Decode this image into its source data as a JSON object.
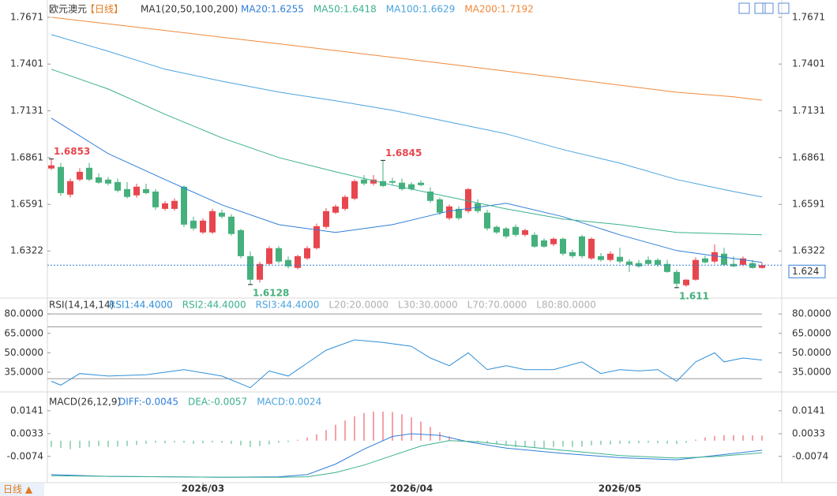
{
  "chart_data": [
    {
      "type": "candlestick",
      "title": "欧元澳元",
      "period": "【日线】",
      "indicator": "MA1(20,50,100,200)",
      "up_color": "#e8464e",
      "down_color": "#45b07c",
      "candles": {
        "open": [
          1.6798,
          1.6807,
          1.6647,
          1.6734,
          1.6802,
          1.6747,
          1.6734,
          1.672,
          1.6679,
          1.6643,
          1.6679,
          1.6665,
          1.6565,
          1.6565,
          1.6693,
          1.6497,
          1.6429,
          1.6429,
          1.6543,
          1.652,
          1.6442,
          1.6292,
          1.6156,
          1.6247,
          1.6338,
          1.627,
          1.6224,
          1.6279,
          1.6338,
          1.6461,
          1.6543,
          1.6565,
          1.6624,
          1.6734,
          1.6711,
          1.6725,
          1.6725,
          1.6716,
          1.6707,
          1.6716,
          1.6665,
          1.662,
          1.6511,
          1.6565,
          1.6552,
          1.6597,
          1.6543,
          1.6461,
          1.6452,
          1.6461,
          1.6415,
          1.6415,
          1.6383,
          1.6361,
          1.6392,
          1.6315,
          1.6406,
          1.6279,
          1.6292,
          1.627,
          1.6288,
          1.6261,
          1.6252,
          1.627,
          1.627,
          1.6247,
          1.6201,
          1.6124,
          1.6156,
          1.6279,
          1.6261,
          1.6306,
          1.6247,
          1.6242,
          1.6252,
          1.6224
        ],
        "high": [
          1.6853,
          1.683,
          1.674,
          1.68,
          1.683,
          1.677,
          1.675,
          1.674,
          1.672,
          1.671,
          1.671,
          1.668,
          1.661,
          1.6625,
          1.67,
          1.652,
          1.651,
          1.6565,
          1.656,
          1.6535,
          1.645,
          1.632,
          1.626,
          1.635,
          1.635,
          1.629,
          1.63,
          1.635,
          1.648,
          1.657,
          1.659,
          1.6645,
          1.6735,
          1.676,
          1.676,
          1.6845,
          1.6745,
          1.674,
          1.672,
          1.673,
          1.669,
          1.663,
          1.659,
          1.658,
          1.6685,
          1.662,
          1.656,
          1.647,
          1.646,
          1.6475,
          1.645,
          1.643,
          1.6395,
          1.64,
          1.64,
          1.633,
          1.6415,
          1.64,
          1.631,
          1.632,
          1.634,
          1.6275,
          1.627,
          1.629,
          1.628,
          1.627,
          1.6215,
          1.616,
          1.6285,
          1.6295,
          1.636,
          1.634,
          1.629,
          1.629,
          1.627,
          1.6255
        ],
        "low": [
          1.679,
          1.664,
          1.663,
          1.6725,
          1.6725,
          1.671,
          1.67,
          1.666,
          1.6625,
          1.663,
          1.665,
          1.656,
          1.6555,
          1.6555,
          1.646,
          1.644,
          1.642,
          1.642,
          1.651,
          1.641,
          1.628,
          1.6128,
          1.614,
          1.624,
          1.625,
          1.622,
          1.6215,
          1.627,
          1.633,
          1.645,
          1.6535,
          1.6555,
          1.6615,
          1.67,
          1.67,
          1.669,
          1.6705,
          1.667,
          1.667,
          1.6695,
          1.66,
          1.653,
          1.65,
          1.65,
          1.654,
          1.654,
          1.644,
          1.642,
          1.6395,
          1.6405,
          1.6405,
          1.634,
          1.634,
          1.635,
          1.6295,
          1.628,
          1.628,
          1.627,
          1.626,
          1.626,
          1.625,
          1.62,
          1.6225,
          1.624,
          1.623,
          1.6195,
          1.611,
          1.6115,
          1.615,
          1.625,
          1.625,
          1.6235,
          1.623,
          1.6235,
          1.622,
          1.622
        ],
        "close": [
          1.6816,
          1.6656,
          1.6725,
          1.6779,
          1.6734,
          1.6716,
          1.6711,
          1.667,
          1.6634,
          1.6693,
          1.6656,
          1.6574,
          1.6597,
          1.6611,
          1.6474,
          1.6452,
          1.6497,
          1.6552,
          1.652,
          1.642,
          1.6292,
          1.6156,
          1.6247,
          1.6338,
          1.6261,
          1.6233,
          1.6292,
          1.6338,
          1.6465,
          1.6552,
          1.6579,
          1.6634,
          1.6725,
          1.6711,
          1.6734,
          1.6697,
          1.6716,
          1.6679,
          1.6679,
          1.6702,
          1.6611,
          1.6543,
          1.6579,
          1.6511,
          1.6679,
          1.6552,
          1.6452,
          1.6429,
          1.6406,
          1.6415,
          1.6442,
          1.6347,
          1.6347,
          1.6392,
          1.6306,
          1.6292,
          1.6292,
          1.6392,
          1.627,
          1.6306,
          1.6261,
          1.6242,
          1.6233,
          1.6247,
          1.6242,
          1.6201,
          1.6133,
          1.6156,
          1.627,
          1.6256,
          1.6315,
          1.6242,
          1.6233,
          1.6279,
          1.6224,
          1.624
        ]
      },
      "series": [
        {
          "name": "MA20:1.6255",
          "color": "#2f7ed8",
          "x": [
            0,
            6,
            12,
            18,
            24,
            30,
            36,
            42,
            48,
            54,
            60,
            66,
            72,
            75
          ],
          "values": [
            1.7089,
            1.6884,
            1.6734,
            1.6588,
            1.6474,
            1.6429,
            1.6474,
            1.6552,
            1.6597,
            1.652,
            1.6415,
            1.6324,
            1.6279,
            1.6256
          ]
        },
        {
          "name": "MA50:1.6418",
          "color": "#3bb08f",
          "x": [
            0,
            6,
            12,
            18,
            24,
            30,
            36,
            42,
            48,
            54,
            60,
            66,
            72,
            75
          ],
          "values": [
            1.7371,
            1.7257,
            1.7111,
            1.6975,
            1.6861,
            1.6779,
            1.6702,
            1.6634,
            1.6565,
            1.6506,
            1.6474,
            1.6429,
            1.642,
            1.6415
          ]
        },
        {
          "name": "MA100:1.6629",
          "color": "#4aa3df",
          "x": [
            0,
            6,
            12,
            18,
            24,
            30,
            36,
            42,
            48,
            54,
            60,
            66,
            72,
            75
          ],
          "values": [
            1.7571,
            1.7475,
            1.7371,
            1.7302,
            1.7239,
            1.7189,
            1.7134,
            1.7066,
            1.6998,
            1.6907,
            1.6829,
            1.6734,
            1.6665,
            1.6634
          ]
        },
        {
          "name": "MA200:1.7192",
          "color": "#f0883a",
          "x": [
            0,
            6,
            12,
            18,
            24,
            30,
            36,
            42,
            48,
            54,
            60,
            66,
            72,
            75
          ],
          "values": [
            1.7671,
            1.7633,
            1.7595,
            1.7556,
            1.7518,
            1.7479,
            1.744,
            1.74,
            1.736,
            1.732,
            1.7279,
            1.7238,
            1.7212,
            1.7192
          ]
        }
      ],
      "ylim": [
        1.605,
        1.7707
      ],
      "yticks": [
        1.7671,
        1.7401,
        1.7131,
        1.6861,
        1.6591,
        1.6322
      ],
      "xticks": [
        {
          "value": 16,
          "label": "2026/03"
        },
        {
          "value": 38,
          "label": "2026/04"
        },
        {
          "value": 60,
          "label": "2026/05"
        }
      ],
      "last_price": 1.624,
      "annotations": [
        {
          "x": 0,
          "value": 1.6853,
          "side": "high"
        },
        {
          "x": 35,
          "value": 1.6845,
          "side": "high"
        },
        {
          "x": 21,
          "value": 1.6128,
          "side": "low"
        },
        {
          "x": 66,
          "value": 1.611,
          "side": "low"
        }
      ]
    },
    {
      "type": "line",
      "title": "RSI(14,14,14)",
      "series": [
        {
          "name": "RSI1:44.4000",
          "color": "#2f8fd8",
          "x": [
            0,
            1,
            3,
            6,
            10,
            14,
            18,
            21,
            23,
            25,
            27,
            29,
            32,
            35,
            38,
            40,
            42,
            44,
            46,
            48,
            50,
            53,
            56,
            58,
            60,
            62,
            64,
            66,
            68,
            70,
            71,
            73,
            75
          ],
          "values": [
            28,
            25,
            34,
            32,
            33,
            37,
            32,
            23,
            36,
            32,
            42,
            52,
            60,
            58,
            55,
            46,
            40,
            50,
            37,
            40,
            37,
            37,
            43,
            34,
            37,
            36,
            37,
            28,
            43,
            50,
            43,
            46,
            44.4
          ]
        }
      ],
      "legend_extra": [
        {
          "name": "RSI2:44.4000",
          "color": "#3bb08f"
        },
        {
          "name": "RSI3:44.4000",
          "color": "#4aa3df"
        }
      ],
      "levels": [
        {
          "value": 20,
          "label": "L20:20.0000"
        },
        {
          "value": 30,
          "label": "L30:30.0000"
        },
        {
          "value": 70,
          "label": "L70:70.0000"
        },
        {
          "value": 80,
          "label": "L80:80.0000"
        }
      ],
      "ylim": [
        21,
        88
      ],
      "yticks": [
        {
          "value": 80,
          "label": "80.0000"
        },
        {
          "value": 65,
          "label": "65.0000"
        },
        {
          "value": 50,
          "label": "50.0000"
        },
        {
          "value": 35,
          "label": "35.0000"
        }
      ]
    },
    {
      "type": "macd",
      "title": "MACD(26,12,9)",
      "series": [
        {
          "name": "DIFF:-0.0045",
          "color": "#2f7ed8",
          "x": [
            0,
            6,
            12,
            18,
            24,
            27,
            30,
            33,
            36,
            38,
            41,
            44,
            48,
            54,
            60,
            66,
            70,
            75
          ],
          "values": [
            -0.016,
            -0.0168,
            -0.017,
            -0.0172,
            -0.017,
            -0.016,
            -0.011,
            -0.004,
            0.002,
            0.0033,
            0.0025,
            -0.0005,
            -0.0035,
            -0.006,
            -0.008,
            -0.009,
            -0.007,
            -0.0045
          ]
        },
        {
          "name": "DEA:-0.0057",
          "color": "#3bb08f",
          "x": [
            0,
            6,
            12,
            18,
            24,
            27,
            30,
            33,
            36,
            39,
            42,
            45,
            48,
            54,
            60,
            66,
            70,
            75
          ],
          "values": [
            -0.0165,
            -0.0168,
            -0.017,
            -0.0172,
            -0.0172,
            -0.017,
            -0.015,
            -0.0115,
            -0.007,
            -0.0025,
            0.0,
            -0.0005,
            -0.002,
            -0.0045,
            -0.007,
            -0.0082,
            -0.0075,
            -0.0057
          ]
        }
      ],
      "histogram": {
        "name": "MACD:0.0024",
        "color": "#4aa3df",
        "up_color": "#e8464e",
        "down_color": "#45b07c",
        "values": [
          -0.003,
          -0.0035,
          -0.004,
          -0.0035,
          -0.003,
          -0.0025,
          -0.003,
          -0.0028,
          -0.0025,
          -0.002,
          -0.0015,
          -0.001,
          -0.0012,
          -0.0008,
          -0.001,
          -0.0015,
          -0.0012,
          -0.0008,
          -0.001,
          -0.0015,
          -0.0022,
          -0.003,
          -0.0025,
          -0.0018,
          -0.001,
          -0.0006,
          0.0004,
          0.0015,
          0.003,
          0.005,
          0.0075,
          0.0095,
          0.0115,
          0.013,
          0.0137,
          0.0137,
          0.0135,
          0.0125,
          0.011,
          0.009,
          0.0065,
          0.004,
          0.002,
          0.0005,
          -0.0005,
          -0.0008,
          -0.0012,
          -0.0018,
          -0.0024,
          -0.003,
          -0.003,
          -0.0032,
          -0.0034,
          -0.003,
          -0.0028,
          -0.003,
          -0.0028,
          -0.0022,
          -0.002,
          -0.0018,
          -0.0015,
          -0.0014,
          -0.0012,
          -0.001,
          -0.0012,
          -0.0014,
          -0.0016,
          -0.001,
          0.0005,
          0.0015,
          0.0022,
          0.0026,
          0.0026,
          0.0025,
          0.0025,
          0.0024
        ]
      },
      "ylim": [
        -0.019,
        0.02
      ],
      "yticks": [
        0.0141,
        0.0033,
        -0.0074
      ]
    }
  ],
  "period_button": "日线 ▲"
}
